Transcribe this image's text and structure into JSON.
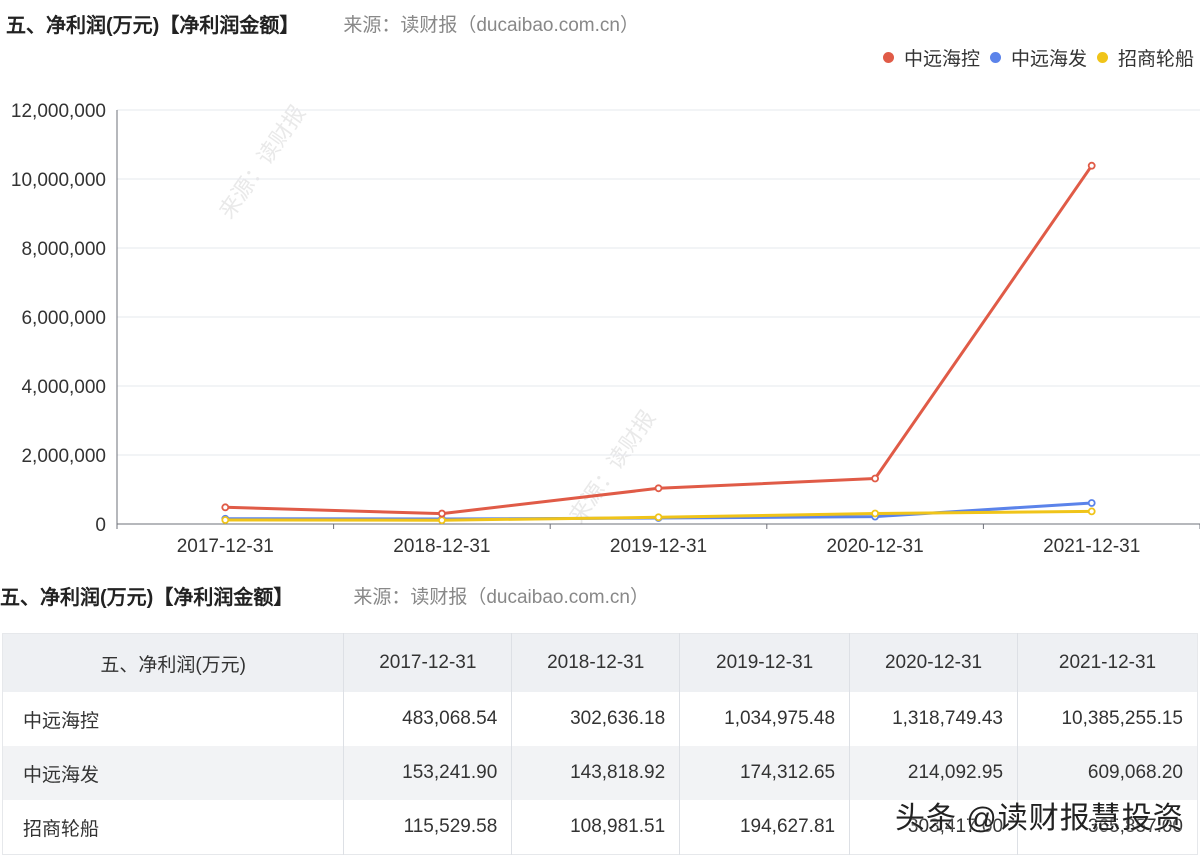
{
  "chart_header": {
    "title": "五、净利润(万元)【净利润金额】",
    "source": "来源：读财报（ducaibao.com.cn）"
  },
  "legend": [
    {
      "name": "中远海控",
      "color": "#e05b47"
    },
    {
      "name": "中远海发",
      "color": "#5b83ea"
    },
    {
      "name": "招商轮船",
      "color": "#f0c419"
    }
  ],
  "watermark": {
    "text": "来源：读财报",
    "sub": "ducaibao.com.cn"
  },
  "chart_data": {
    "type": "line",
    "title": "五、净利润(万元)【净利润金额】",
    "xlabel": "",
    "ylabel": "",
    "categories": [
      "2017-12-31",
      "2018-12-31",
      "2019-12-31",
      "2020-12-31",
      "2021-12-31"
    ],
    "ylim": [
      0,
      12000000
    ],
    "yticks": [
      "0",
      "2,000,000",
      "4,000,000",
      "6,000,000",
      "8,000,000",
      "10,000,000",
      "12,000,000"
    ],
    "ytick_values": [
      0,
      2000000,
      4000000,
      6000000,
      8000000,
      10000000,
      12000000
    ],
    "grid": true,
    "legend_position": "top-right",
    "series": [
      {
        "name": "中远海控",
        "color": "#e05b47",
        "values": [
          483068.54,
          302636.18,
          1034975.48,
          1318749.43,
          10385255.15
        ]
      },
      {
        "name": "中远海发",
        "color": "#5b83ea",
        "values": [
          153241.9,
          143818.92,
          174312.65,
          214092.95,
          609068.2
        ]
      },
      {
        "name": "招商轮船",
        "color": "#f0c419",
        "values": [
          115529.58,
          108981.51,
          194627.81,
          303417.0,
          365857.0
        ]
      }
    ]
  },
  "table_header": {
    "title": "五、净利润(万元)【净利润金额】",
    "source": "来源：读财报（ducaibao.com.cn）"
  },
  "table": {
    "columns": [
      "五、净利润(万元)",
      "2017-12-31",
      "2018-12-31",
      "2019-12-31",
      "2020-12-31",
      "2021-12-31"
    ],
    "rows": [
      {
        "name": "中远海控",
        "cells": [
          "483,068.54",
          "302,636.18",
          "1,034,975.48",
          "1,318,749.43",
          "10,385,255.15"
        ]
      },
      {
        "name": "中远海发",
        "cells": [
          "153,241.90",
          "143,818.92",
          "174,312.65",
          "214,092.95",
          "609,068.20"
        ]
      },
      {
        "name": "招商轮船",
        "cells": [
          "115,529.58",
          "108,981.51",
          "194,627.81",
          "303,417.00",
          "365,857.00"
        ]
      }
    ]
  },
  "overlay_watermark": "头条 @读财报慧投资"
}
